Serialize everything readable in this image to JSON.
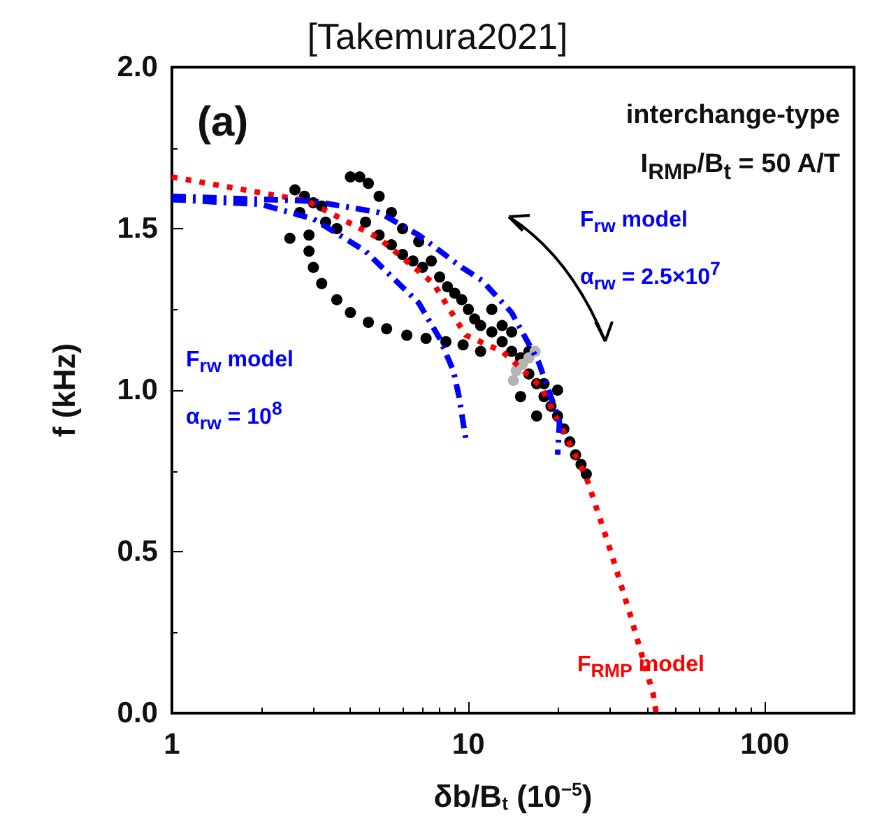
{
  "chart_data": {
    "type": "scatter",
    "title": "[Takemura2021]",
    "xlabel": "δb/B$_{t}$ (10$^{−5}$)",
    "ylabel": "f (kHz)",
    "log": "x",
    "xlim": [
      1,
      200
    ],
    "xticks": [
      1,
      10,
      100
    ],
    "ylim": [
      0,
      2
    ],
    "yticks": [
      {
        "value": 0,
        "label": "0.0"
      },
      {
        "value": 0.5,
        "label": "0.5"
      },
      {
        "value": 1,
        "label": "1.0"
      },
      {
        "value": 1.5,
        "label": "1.5"
      },
      {
        "value": 2,
        "label": "2.0"
      }
    ],
    "grid": false,
    "legend": false,
    "marker": "circle",
    "annotations": [
      "(a)",
      "interchange-type",
      "I$_{RMP}$/B$_{t}$ = 50 A/T"
    ],
    "series": [
      {
        "color": "#000000",
        "x": [
          2.6,
          2.8,
          3.0,
          2.7,
          3.2,
          2.5,
          2.9,
          3.3,
          3.6,
          4.0,
          4.3,
          4.6,
          5.0,
          5.5,
          4.5,
          5.0,
          5.5,
          6.0,
          6.5,
          7.0,
          6.0,
          6.8,
          7.5,
          8.0,
          8.5,
          9.0,
          9.5,
          10,
          10.5,
          11,
          12,
          13,
          14,
          12,
          13,
          14,
          15,
          16,
          17,
          18,
          19,
          20,
          21,
          22,
          23,
          24,
          25,
          20,
          18,
          16,
          15,
          17,
          2.9,
          3.0,
          3.2,
          3.6,
          4.0,
          4.6,
          5.3,
          6.2,
          7.2,
          8.4,
          9.6,
          11
        ],
        "values": [
          1.62,
          1.6,
          1.58,
          1.55,
          1.57,
          1.47,
          1.48,
          1.52,
          1.5,
          1.66,
          1.66,
          1.64,
          1.6,
          1.55,
          1.52,
          1.48,
          1.45,
          1.42,
          1.4,
          1.38,
          1.5,
          1.46,
          1.4,
          1.35,
          1.32,
          1.3,
          1.28,
          1.25,
          1.22,
          1.2,
          1.18,
          1.15,
          1.12,
          1.25,
          1.2,
          1.18,
          1.1,
          1.05,
          1.02,
          0.98,
          0.95,
          0.92,
          0.88,
          0.84,
          0.8,
          0.77,
          0.74,
          1.0,
          1.02,
          1.12,
          0.98,
          0.92,
          1.43,
          1.38,
          1.33,
          1.28,
          1.24,
          1.21,
          1.19,
          1.17,
          1.16,
          1.15,
          1.14,
          1.12
        ]
      },
      {
        "color": "#b4b4b4",
        "x": [
          14.2,
          14.5,
          15.2,
          16,
          16.8
        ],
        "values": [
          1.03,
          1.06,
          1.08,
          1.1,
          1.12
        ]
      },
      {
        "type": "line",
        "name": "F$_{RMP}$ model",
        "color": "#ff0000",
        "line_style": "dotted",
        "marker": "none",
        "x": [
          1,
          2.87,
          5,
          7.63,
          9.8,
          13,
          17.6,
          25,
          30,
          35,
          42,
          43
        ],
        "values": [
          1.66,
          1.585,
          1.47,
          1.33,
          1.17,
          1.12,
          1.01,
          0.73,
          0.51,
          0.31,
          0.06,
          0
        ]
      },
      {
        "type": "line",
        "name": "F$_{rw}$ model\nα$_{rw}$ = 2.5×10$^{7}$",
        "color": "#0000ff",
        "line_style": "dashed",
        "marker": "none",
        "x": [
          1,
          3,
          5,
          6.8,
          9.5,
          11.1,
          14,
          17.2,
          19,
          20.3,
          20
        ],
        "values": [
          1.6,
          1.585,
          1.55,
          1.48,
          1.38,
          1.34,
          1.24,
          1.09,
          0.98,
          0.9,
          0.8
        ]
      },
      {
        "type": "line",
        "name": "F$_{rw}$ model\nα$_{rw}$ = 10$^{8}$",
        "color": "#0000ff",
        "line_style": "dashed",
        "marker": "none",
        "x": [
          1,
          2,
          3,
          4.5,
          6.8,
          8,
          8.9,
          9.3,
          9.6,
          9.8
        ],
        "values": [
          1.59,
          1.575,
          1.53,
          1.43,
          1.27,
          1.16,
          1.06,
          0.98,
          0.9,
          0.85
        ]
      }
    ]
  }
}
